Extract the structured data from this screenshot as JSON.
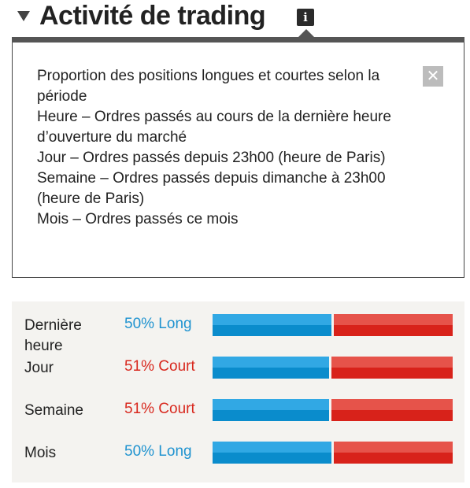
{
  "header": {
    "title": "Activité de trading",
    "info_icon": "info-icon",
    "toggle_icon": "triangle-down-icon"
  },
  "info_panel": {
    "lines": [
      "Proportion des positions longues et courtes selon la période",
      "Heure – Ordres passés au cours de la dernière heure d’ouverture du marché",
      "Jour – Ordres passés depuis 23h00 (heure de Paris)",
      "Semaine – Ordres passés depuis dimanche à 23h00 (heure de Paris)",
      "Mois – Ordres passés ce mois"
    ],
    "close_icon": "close-icon"
  },
  "stats": [
    {
      "label": "Dernière heure",
      "value": "50% Long",
      "side": "long",
      "long_pct": 50
    },
    {
      "label": "Jour",
      "value": "51% Court",
      "side": "short",
      "long_pct": 49
    },
    {
      "label": "Semaine",
      "value": "51% Court",
      "side": "short",
      "long_pct": 49
    },
    {
      "label": "Mois",
      "value": "50% Long",
      "side": "long",
      "long_pct": 50
    }
  ],
  "colors": {
    "long": "#1f93d0",
    "short": "#d8281e",
    "panel_bg": "#f4f3f0"
  }
}
